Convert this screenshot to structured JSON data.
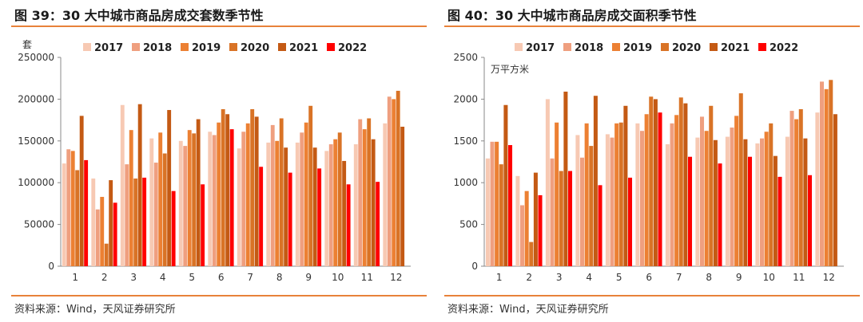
{
  "charts": [
    {
      "title": "图 39：30 大中城市商品房成交套数季节性",
      "source": "资料来源：Wind，天风证券研究所"
    },
    {
      "title": "图 40：30 大中城市商品房成交面积季节性",
      "source": "资料来源：Wind，天风证券研究所"
    }
  ],
  "colors": [
    "#f7c9b3",
    "#ef9f7f",
    "#ec8033",
    "#d97326",
    "#c45a14",
    "#ff0000"
  ],
  "chart_data": [
    {
      "type": "bar",
      "title": "图 39：30 大中城市商品房成交套数季节性",
      "xlabel": "",
      "ylabel": "套",
      "ylim": [
        0,
        250000
      ],
      "yticks": [
        0,
        50000,
        100000,
        150000,
        200000,
        250000
      ],
      "grid": false,
      "legend": "top",
      "categories": [
        "1",
        "2",
        "3",
        "4",
        "5",
        "6",
        "7",
        "8",
        "9",
        "10",
        "11",
        "12"
      ],
      "series": [
        {
          "name": "2017",
          "values": [
            123000,
            105000,
            193000,
            153000,
            150000,
            161000,
            141000,
            148000,
            148000,
            138000,
            146000,
            171000
          ]
        },
        {
          "name": "2018",
          "values": [
            140000,
            68000,
            122000,
            124000,
            144000,
            157000,
            161000,
            169000,
            160000,
            146000,
            176000,
            203000
          ]
        },
        {
          "name": "2019",
          "values": [
            138000,
            83000,
            163000,
            160000,
            163000,
            172000,
            171000,
            150000,
            172000,
            152000,
            164000,
            200000
          ]
        },
        {
          "name": "2020",
          "values": [
            115000,
            27000,
            105000,
            135000,
            159000,
            188000,
            188000,
            177000,
            192000,
            160000,
            177000,
            210000
          ]
        },
        {
          "name": "2021",
          "values": [
            180000,
            103000,
            194000,
            187000,
            176000,
            182000,
            179000,
            142000,
            142000,
            126000,
            152000,
            167000
          ]
        },
        {
          "name": "2022",
          "values": [
            127000,
            76000,
            106000,
            90000,
            98000,
            164000,
            119000,
            112000,
            117000,
            98000,
            101000,
            null
          ]
        }
      ]
    },
    {
      "type": "bar",
      "title": "图 40：30 大中城市商品房成交面积季节性",
      "xlabel": "",
      "ylabel": "万平方米",
      "ylim": [
        0,
        2500
      ],
      "yticks": [
        0,
        500,
        1000,
        1500,
        2000,
        2500
      ],
      "grid": false,
      "legend": "top",
      "categories": [
        "1",
        "2",
        "3",
        "4",
        "5",
        "6",
        "7",
        "8",
        "9",
        "10",
        "11",
        "12"
      ],
      "series": [
        {
          "name": "2017",
          "values": [
            1290,
            1080,
            2000,
            1570,
            1580,
            1710,
            1460,
            1540,
            1550,
            1470,
            1550,
            1840
          ]
        },
        {
          "name": "2018",
          "values": [
            1490,
            730,
            1290,
            1300,
            1540,
            1620,
            1710,
            1790,
            1660,
            1530,
            1860,
            2210
          ]
        },
        {
          "name": "2019",
          "values": [
            1490,
            900,
            1720,
            1710,
            1710,
            1820,
            1810,
            1620,
            1800,
            1610,
            1760,
            2120
          ]
        },
        {
          "name": "2020",
          "values": [
            1220,
            290,
            1140,
            1440,
            1720,
            2030,
            2020,
            1920,
            2070,
            1710,
            1880,
            2230
          ]
        },
        {
          "name": "2021",
          "values": [
            1930,
            1120,
            2090,
            2040,
            1920,
            2000,
            1950,
            1510,
            1520,
            1320,
            1530,
            1820
          ]
        },
        {
          "name": "2022",
          "values": [
            1450,
            850,
            1140,
            970,
            1060,
            1840,
            1310,
            1230,
            1310,
            1070,
            1090,
            null
          ]
        }
      ]
    }
  ]
}
